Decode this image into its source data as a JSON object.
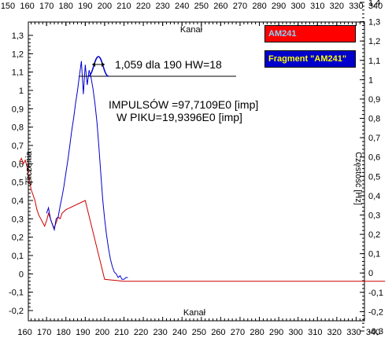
{
  "chart_data": {
    "type": "line",
    "x_axis": {
      "label": "Kanał",
      "range": [
        150,
        340
      ],
      "ticks_top": [
        150,
        160,
        170,
        180,
        190,
        200,
        210,
        220,
        230,
        240,
        250,
        260,
        270,
        280,
        290,
        300,
        310,
        320,
        330,
        340
      ],
      "ticks_bottom": [
        160,
        170,
        180,
        190,
        200,
        210,
        220,
        230,
        240,
        250,
        260,
        270,
        280,
        290,
        300,
        310,
        320,
        330,
        340
      ]
    },
    "y_left": {
      "label": "Zliczenia",
      "range": [
        -0.2,
        1.3
      ],
      "ticks": [
        "-0,2",
        "-0,1",
        "0",
        "0,1",
        "0,2",
        "0,3",
        "0,4",
        "0,5",
        "0,6",
        "0,7",
        "0,8",
        "0,9",
        "1",
        "1,1",
        "1,2",
        "1,3"
      ]
    },
    "y_right": {
      "label": "Częstość [Hz]",
      "range": [
        -0.3,
        1.4
      ],
      "ticks": [
        "-0,3",
        "-0,2",
        "-0,1",
        "0",
        "0,1",
        "0,2",
        "0,3",
        "0,4",
        "0,5",
        "0,6",
        "0,7",
        "0,8",
        "0,9",
        "1",
        "1,1",
        "1,2",
        "1,3",
        "1,4"
      ]
    },
    "series": [
      {
        "name": "AM241",
        "color": "#cc0000",
        "x": [
          156,
          157,
          158,
          159,
          160,
          161,
          162,
          163,
          164,
          165,
          166,
          167,
          168,
          169,
          170,
          171,
          172,
          173,
          174,
          175,
          176,
          177,
          178,
          180,
          190,
          200,
          210,
          220,
          230,
          240,
          250,
          260,
          270,
          280,
          290,
          300,
          310,
          320,
          330,
          340,
          345
        ],
        "y": [
          0.61,
          0.63,
          0.6,
          0.62,
          0.58,
          0.52,
          0.46,
          0.43,
          0.4,
          0.35,
          0.32,
          0.3,
          0.28,
          0.26,
          0.29,
          0.33,
          0.3,
          0.27,
          0.25,
          0.28,
          0.31,
          0.3,
          0.33,
          0.35,
          0.4,
          -0.03,
          -0.04,
          -0.04,
          -0.04,
          -0.04,
          -0.04,
          -0.04,
          -0.04,
          -0.04,
          -0.04,
          -0.04,
          -0.04,
          -0.04,
          -0.04,
          -0.04,
          -0.04
        ]
      },
      {
        "name": "Fragment \"AM241\"",
        "color": "#0000cc",
        "x": [
          170,
          171,
          172,
          173,
          174,
          175,
          176,
          177,
          178,
          179,
          180,
          181,
          182,
          183,
          184,
          185,
          186,
          187,
          188,
          189,
          190,
          191,
          192,
          193,
          194,
          195,
          196,
          197,
          198,
          199,
          200,
          201,
          202,
          203,
          204,
          205,
          206,
          207,
          208,
          209,
          210,
          211,
          212
        ],
        "y": [
          0.33,
          0.36,
          0.3,
          0.27,
          0.24,
          0.3,
          0.31,
          0.37,
          0.42,
          0.48,
          0.55,
          0.62,
          0.7,
          0.78,
          0.85,
          0.93,
          1.0,
          1.08,
          1.16,
          0.98,
          1.14,
          1.03,
          1.11,
          1.07,
          1.01,
          0.93,
          0.83,
          0.7,
          0.55,
          0.41,
          0.3,
          0.21,
          0.14,
          0.08,
          0.04,
          0.01,
          0.0,
          -0.02,
          -0.01,
          -0.03,
          -0.03,
          -0.02,
          -0.02
        ]
      }
    ],
    "annotations": {
      "peak_label": "1,059 dla 190 HW=18",
      "impulses": "IMPULSÓW =97,7109E0 [imp]",
      "in_peak": "W PIKU=19,9396E0 [imp]"
    },
    "grid": false,
    "legend_placement": "top-right"
  }
}
